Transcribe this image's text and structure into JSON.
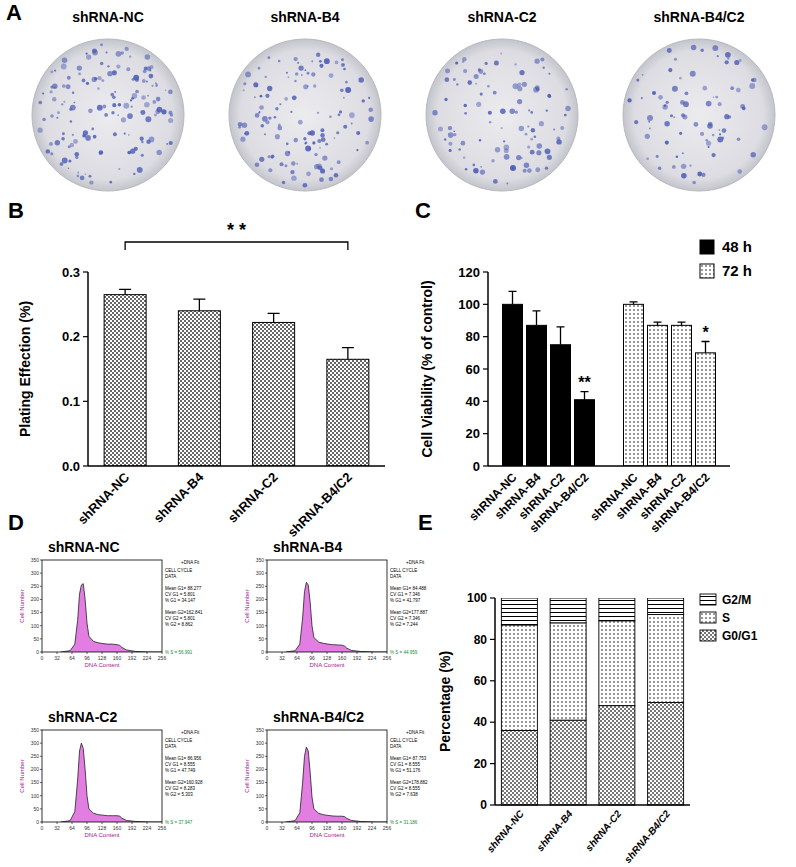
{
  "chart_data": [
    {
      "panel": "A",
      "type": "image",
      "labels": [
        "shRNA-NC",
        "shRNA-B4",
        "shRNA-C2",
        "shRNA-B4/C2"
      ]
    },
    {
      "panel": "B",
      "type": "bar",
      "categories": [
        "shRNA-NC",
        "shRNA-B4",
        "shRNA-C2",
        "shRNA-B4/C2"
      ],
      "values": [
        0.265,
        0.24,
        0.222,
        0.165
      ],
      "errors": [
        0.008,
        0.018,
        0.014,
        0.018
      ],
      "y_label": "Plating Effection (%)",
      "ylim": [
        0,
        0.3
      ],
      "yticks": [
        {
          "value": 0,
          "label": "0.0"
        },
        {
          "value": 0.1,
          "label": "0.1"
        },
        {
          "value": 0.2,
          "label": "0.2"
        },
        {
          "value": 0.3,
          "label": "0.3"
        }
      ],
      "color": "#666666",
      "annotations": [
        {
          "text": "* *",
          "categories": [
            "shRNA-NC",
            "shRNA-B4/C2"
          ]
        }
      ]
    },
    {
      "panel": "C",
      "type": "bar",
      "categories": [
        "shRNA-NC",
        "shRNA-B4",
        "shRNA-C2",
        "shRNA-B4/C2"
      ],
      "series": [
        {
          "name": "48 h",
          "color": "#000000",
          "values": [
            100,
            87,
            75,
            41
          ],
          "errors": [
            8,
            9,
            11,
            5
          ]
        },
        {
          "name": "72 h",
          "color": "#ffffff",
          "values": [
            100,
            87,
            87,
            70
          ],
          "errors": [
            1.5,
            2,
            2,
            7
          ]
        }
      ],
      "y_label": "Cell Viability (% of control)",
      "ylim": [
        0,
        120
      ],
      "yticks": [
        0,
        20,
        40,
        60,
        80,
        100,
        120
      ],
      "legend": "upper right",
      "annotations": [
        {
          "text": "**",
          "series": "48 h",
          "category": "shRNA-B4/C2"
        },
        {
          "text": "*",
          "series": "72 h",
          "category": "shRNA-B4/C2"
        }
      ]
    },
    {
      "panel": "D",
      "type": "line",
      "x_label": "DNA Content",
      "y_label": "Cell Number",
      "fit_label": "+DNA Fit",
      "color": "#dd66dd",
      "x": [
        40,
        60,
        70,
        76,
        80,
        84,
        88,
        92,
        96,
        100,
        110,
        120,
        130,
        140,
        150,
        160,
        166,
        170,
        180,
        200,
        230,
        256
      ],
      "xlim": [
        0,
        256
      ],
      "xticks": [
        0,
        32,
        64,
        96,
        128,
        160,
        192,
        224,
        256
      ],
      "ylim": [
        0,
        350
      ],
      "yticks": [
        0,
        50,
        100,
        150,
        200,
        250,
        300,
        350
      ],
      "subplots": [
        {
          "title": "shRNA-NC",
          "header": [
            "CELL CYCLE",
            "DATA"
          ],
          "stats": [
            "Mean G1= 88.277",
            "CV G1 = 5.801",
            "% G1 = 34.147",
            "Mean G2=162.841",
            "CV G2 = 5.801",
            "% G2 = 8.862"
          ],
          "s_phase": "% S = 56.991",
          "values": [
            0,
            5,
            30,
            120,
            220,
            255,
            260,
            200,
            110,
            60,
            40,
            35,
            32,
            30,
            30,
            28,
            25,
            18,
            8,
            2,
            0,
            0
          ]
        },
        {
          "title": "shRNA-B4",
          "header": [
            "CELL CYCLE",
            "DATA"
          ],
          "stats": [
            "Mean G1= 84.488",
            "CV G1 = 7.346",
            "% G1 = 41.797",
            "Mean G2=177.887",
            "CV G2 = 7.346",
            "% G2 = 7.244"
          ],
          "s_phase": "% S = 44.959",
          "values": [
            0,
            5,
            30,
            130,
            230,
            265,
            255,
            190,
            100,
            55,
            38,
            33,
            30,
            28,
            27,
            26,
            22,
            15,
            6,
            2,
            0,
            0
          ]
        },
        {
          "title": "shRNA-C2",
          "header": [
            "CELL CYCLE",
            "DATA"
          ],
          "stats": [
            "Mean G1= 86.956",
            "CV G1 = 8.555",
            "% G1 = 47.749",
            "Mean G2=160.928",
            "CV G2 = 8.283",
            "% G2 = 5.303"
          ],
          "s_phase": "% S = 37.947",
          "values": [
            0,
            5,
            40,
            160,
            270,
            300,
            280,
            200,
            100,
            50,
            33,
            28,
            26,
            24,
            24,
            24,
            22,
            15,
            6,
            2,
            0,
            0
          ]
        },
        {
          "title": "shRNA-B4/C2",
          "header": [
            "CELL CYCLE",
            "DATA"
          ],
          "stats": [
            "Mean G1= 87.753",
            "CV G1 = 8.555",
            "% G1 = 51.176",
            "Mean G2=178.882",
            "CV G2 = 8.555",
            "% G2 = 7.638"
          ],
          "s_phase": "% S = 31.186",
          "values": [
            0,
            5,
            35,
            150,
            250,
            285,
            270,
            190,
            95,
            50,
            33,
            28,
            25,
            23,
            22,
            22,
            20,
            14,
            6,
            2,
            0,
            0
          ]
        }
      ]
    },
    {
      "panel": "E",
      "type": "bar",
      "stacked": true,
      "categories": [
        "shRNA-NC",
        "shRNA-B4",
        "shRNA-C2",
        "shRNA-B4/C2"
      ],
      "series": [
        {
          "name": "G0/G1",
          "color": "#777777",
          "values": [
            36,
            41,
            48,
            49.5
          ],
          "errors": [
            0.5,
            0.5,
            0.5,
            0.5
          ]
        },
        {
          "name": "S",
          "color": "#ffffff",
          "values": [
            51,
            47,
            41,
            42.5
          ],
          "errors": [
            1,
            1,
            4,
            2
          ]
        },
        {
          "name": "G2/M",
          "color": "#ffffff",
          "values": [
            13,
            12,
            11,
            8
          ],
          "errors": [
            0.5,
            0.5,
            1.5,
            1
          ]
        }
      ],
      "y_label": "Percentage (%)",
      "ylim": [
        0,
        100
      ],
      "yticks": [
        0,
        20,
        40,
        60,
        80,
        100
      ],
      "legend": "upper right"
    }
  ]
}
